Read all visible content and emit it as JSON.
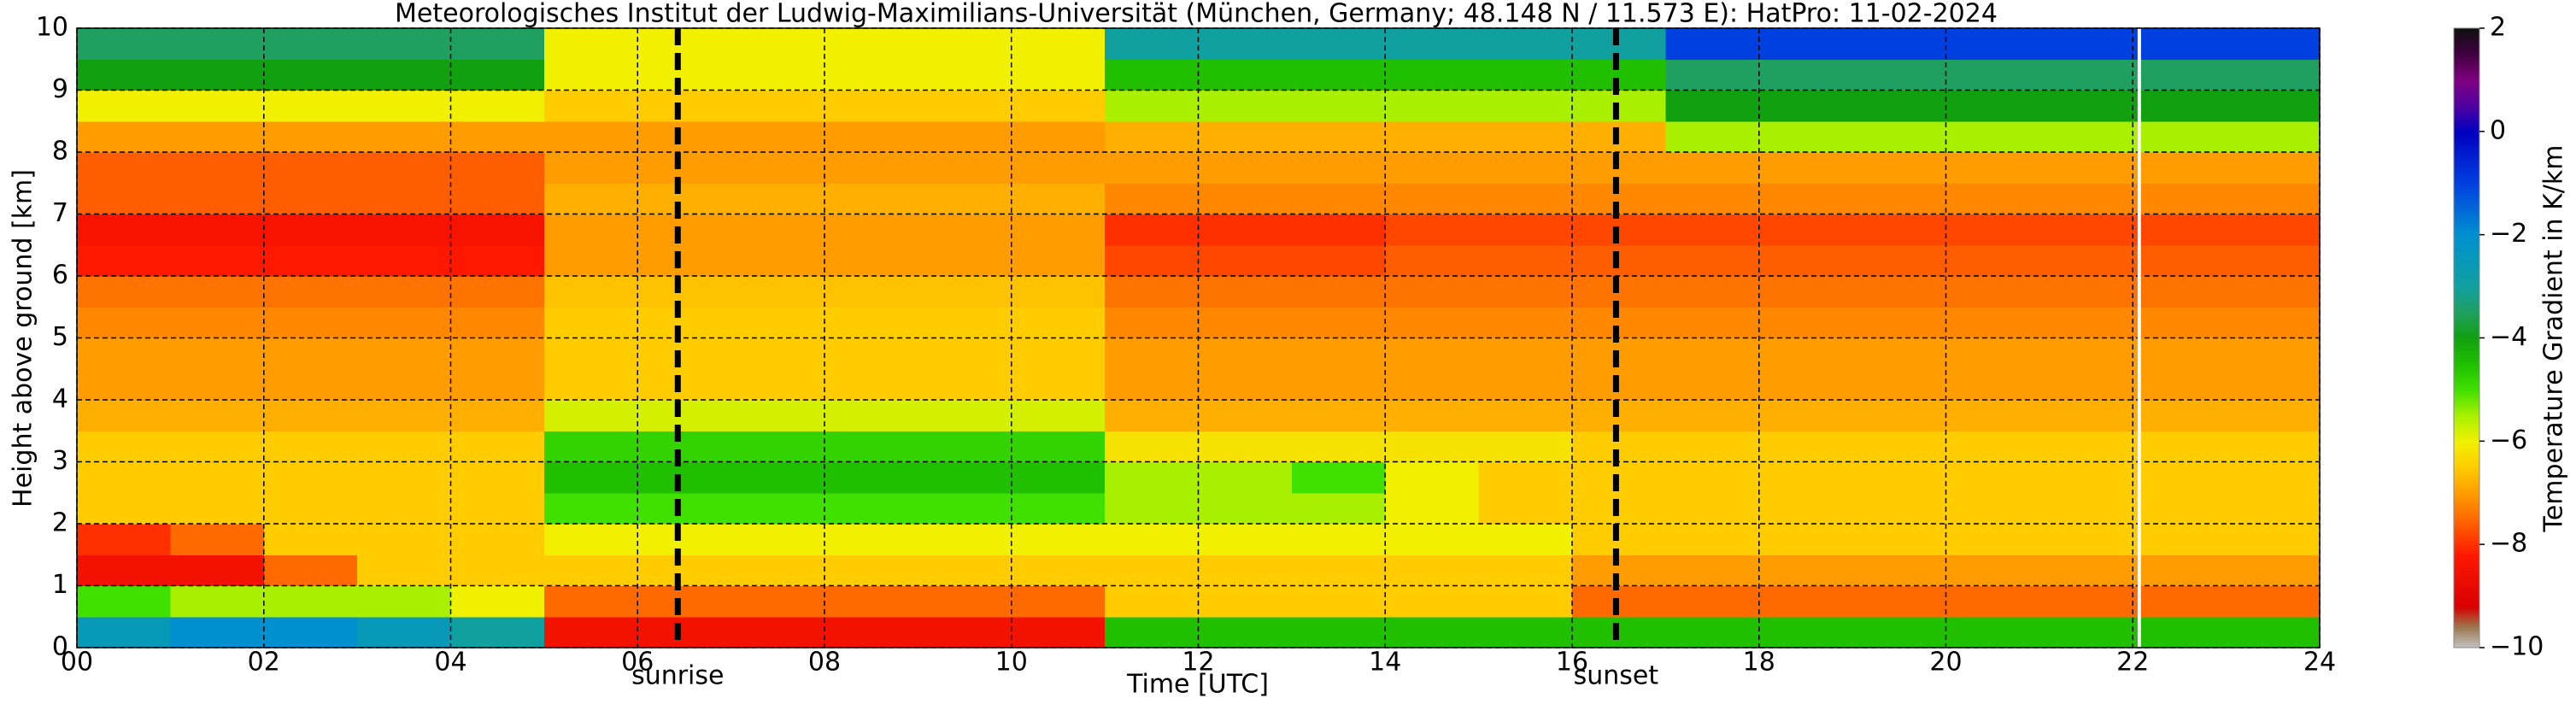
{
  "chart_data": {
    "type": "heatmap",
    "title": "Meteorologisches Institut der Ludwig-Maximilians-Universität (München, Germany; 48.148 N / 11.573 E):    HatPro: 11-02-2024",
    "xlabel": "Time [UTC]",
    "ylabel": "Height above ground [km]",
    "colorbar_label": "Temperature Gradient in K/km",
    "xlim": [
      0,
      24
    ],
    "ylim": [
      0,
      10
    ],
    "xticks": [
      {
        "value": 0,
        "label": "00"
      },
      {
        "value": 2,
        "label": "02"
      },
      {
        "value": 4,
        "label": "04"
      },
      {
        "value": 6,
        "label": "06"
      },
      {
        "value": 8,
        "label": "08"
      },
      {
        "value": 10,
        "label": "10"
      },
      {
        "value": 12,
        "label": "12"
      },
      {
        "value": 14,
        "label": "14"
      },
      {
        "value": 16,
        "label": "16"
      },
      {
        "value": 18,
        "label": "18"
      },
      {
        "value": 20,
        "label": "20"
      },
      {
        "value": 22,
        "label": "22"
      },
      {
        "value": 24,
        "label": "24"
      }
    ],
    "yticks": [
      0,
      1,
      2,
      3,
      4,
      5,
      6,
      7,
      8,
      9,
      10
    ],
    "grid": true,
    "zlim": [
      -10,
      2
    ],
    "zticks": [
      {
        "value": -10,
        "label": "−10"
      },
      {
        "value": -8,
        "label": "−8"
      },
      {
        "value": -6,
        "label": "−6"
      },
      {
        "value": -4,
        "label": "−4"
      },
      {
        "value": -2,
        "label": "−2"
      },
      {
        "value": 0,
        "label": "0"
      },
      {
        "value": 2,
        "label": "2"
      }
    ],
    "colorscale": [
      [
        -10,
        "#c4c4c4"
      ],
      [
        -9.6,
        "#9c7850"
      ],
      [
        -9.2,
        "#d80000"
      ],
      [
        -8.2,
        "#ff1800"
      ],
      [
        -7.5,
        "#ff6a00"
      ],
      [
        -7,
        "#ff9c00"
      ],
      [
        -6.5,
        "#ffcc00"
      ],
      [
        -6,
        "#f0f000"
      ],
      [
        -5.5,
        "#a8f000"
      ],
      [
        -5,
        "#40e000"
      ],
      [
        -4.5,
        "#20c000"
      ],
      [
        -4,
        "#10a010"
      ],
      [
        -3.5,
        "#20a060"
      ],
      [
        -3,
        "#10a0a0"
      ],
      [
        -2,
        "#0090d0"
      ],
      [
        -1,
        "#0040e0"
      ],
      [
        0,
        "#0000c0"
      ],
      [
        0.5,
        "#5000a0"
      ],
      [
        1,
        "#800080"
      ],
      [
        1.5,
        "#400040"
      ],
      [
        2,
        "#101010"
      ]
    ],
    "xbins": [
      0,
      1,
      2,
      3,
      4,
      5,
      6,
      7,
      8,
      9,
      10,
      11,
      12,
      13,
      14,
      15,
      16,
      17,
      18,
      19,
      20,
      21,
      22,
      23,
      24
    ],
    "ybins": [
      0,
      0.5,
      1,
      1.5,
      2,
      2.5,
      3,
      3.5,
      4,
      4.5,
      5,
      5.5,
      6,
      6.5,
      7,
      7.5,
      8,
      8.5,
      9,
      9.5,
      10
    ],
    "z": [
      [
        -2.5,
        -2,
        -2,
        -2.5,
        -3,
        -8.5,
        -8.5,
        -8.5,
        -8.5,
        -8.5,
        -8.5,
        -4.5,
        -4.5,
        -4.5,
        -4.5,
        -4.5,
        -4.5,
        -4.5,
        -4.5,
        -4.5,
        -4.5,
        -4.5,
        -4.5,
        -4.5
      ],
      [
        -5,
        -5.5,
        -5.5,
        -5.5,
        -6,
        -7.5,
        -7.5,
        -7.5,
        -7.5,
        -7.5,
        -7.5,
        -6.5,
        -6.5,
        -6.5,
        -6.5,
        -6.5,
        -7.5,
        -7.5,
        -7.5,
        -7.5,
        -7.5,
        -7.5,
        -7.5,
        -7.5
      ],
      [
        -8.5,
        -8.5,
        -7.5,
        -6.5,
        -6.5,
        -6.5,
        -6.5,
        -6.5,
        -6.5,
        -6.5,
        -6.5,
        -6.5,
        -6.5,
        -6.5,
        -6.5,
        -6.5,
        -7,
        -7,
        -7,
        -7,
        -7,
        -7,
        -7,
        -7
      ],
      [
        -8,
        -7.5,
        -6.5,
        -6.5,
        -6.5,
        -6,
        -6,
        -6,
        -6,
        -6,
        -6,
        -6,
        -6,
        -6,
        -6,
        -6,
        -6.5,
        -6.5,
        -6.5,
        -6.5,
        -6.5,
        -6.5,
        -6.5,
        -6.5
      ],
      [
        -6.5,
        -6.5,
        -6.5,
        -6.5,
        -6.5,
        -5,
        -5,
        -5,
        -5,
        -5,
        -5,
        -5.5,
        -5.5,
        -5.5,
        -6,
        -6.5,
        -6.5,
        -6.5,
        -6.5,
        -6.5,
        -6.5,
        -6.5,
        -6.5,
        -6.5
      ],
      [
        -6.5,
        -6.5,
        -6.5,
        -6.5,
        -6.5,
        -4.5,
        -4.5,
        -4.5,
        -4.5,
        -4.5,
        -4.5,
        -5.5,
        -5.5,
        -5,
        -6,
        -6.5,
        -6.5,
        -6.5,
        -6.5,
        -6.5,
        -6.5,
        -6.5,
        -6.5,
        -6.5
      ],
      [
        -6.5,
        -6.5,
        -6.5,
        -6.5,
        -6.5,
        -4.8,
        -4.8,
        -4.8,
        -4.8,
        -4.8,
        -4.8,
        -6.2,
        -6.2,
        -6.2,
        -6.2,
        -6.2,
        -6.5,
        -6.5,
        -6.5,
        -6.5,
        -6.5,
        -6.5,
        -6.5,
        -6.5
      ],
      [
        -6.8,
        -6.8,
        -6.8,
        -6.8,
        -6.8,
        -5.8,
        -5.8,
        -5.8,
        -5.8,
        -5.8,
        -5.8,
        -6.8,
        -6.8,
        -6.8,
        -6.8,
        -6.8,
        -6.8,
        -6.8,
        -6.8,
        -6.8,
        -6.8,
        -6.8,
        -6.8,
        -6.8
      ],
      [
        -7,
        -7,
        -7,
        -7,
        -7,
        -6.5,
        -6.5,
        -6.5,
        -6.5,
        -6.5,
        -6.5,
        -7,
        -7,
        -7,
        -7,
        -7,
        -7,
        -7,
        -7,
        -7,
        -7,
        -7,
        -7,
        -7
      ],
      [
        -7,
        -7,
        -7,
        -7,
        -7,
        -6.5,
        -6.5,
        -6.5,
        -6.5,
        -6.5,
        -6.5,
        -7,
        -7,
        -7,
        -7,
        -7,
        -7,
        -7,
        -7,
        -7,
        -7,
        -7,
        -7,
        -7
      ],
      [
        -7.2,
        -7.2,
        -7.2,
        -7.2,
        -7.2,
        -6.5,
        -6.5,
        -6.5,
        -6.5,
        -6.5,
        -6.5,
        -7.2,
        -7.2,
        -7.2,
        -7.2,
        -7.2,
        -7.2,
        -7.2,
        -7.2,
        -7.2,
        -7.2,
        -7.2,
        -7.2,
        -7.2
      ],
      [
        -7.4,
        -7.4,
        -7.4,
        -7.4,
        -7.4,
        -6.6,
        -6.6,
        -6.6,
        -6.6,
        -6.6,
        -6.6,
        -7.4,
        -7.4,
        -7.4,
        -7.4,
        -7.4,
        -7.4,
        -7.4,
        -7.4,
        -7.4,
        -7.4,
        -7.4,
        -7.4,
        -7.4
      ],
      [
        -8.2,
        -8.2,
        -8.2,
        -8.2,
        -8.2,
        -7,
        -7,
        -7,
        -7,
        -7,
        -7,
        -7.8,
        -7.8,
        -7.8,
        -7.6,
        -7.6,
        -7.6,
        -7.6,
        -7.6,
        -7.6,
        -7.6,
        -7.6,
        -7.6,
        -7.6
      ],
      [
        -8.4,
        -8.4,
        -8.4,
        -8.4,
        -8.4,
        -7,
        -7,
        -7,
        -7,
        -7,
        -7,
        -8,
        -8,
        -8,
        -7.8,
        -7.8,
        -7.8,
        -7.8,
        -7.8,
        -7.8,
        -7.8,
        -7.8,
        -7.8,
        -7.8
      ],
      [
        -7.6,
        -7.6,
        -7.6,
        -7.6,
        -7.6,
        -6.8,
        -6.8,
        -6.8,
        -6.8,
        -6.8,
        -6.8,
        -7.2,
        -7.2,
        -7.2,
        -7.2,
        -7.2,
        -7.2,
        -7.2,
        -7.2,
        -7.2,
        -7.2,
        -7.2,
        -7.2,
        -7.2
      ],
      [
        -7.6,
        -7.6,
        -7.6,
        -7.6,
        -7.6,
        -7,
        -7,
        -7,
        -7,
        -7,
        -7,
        -7,
        -7,
        -7,
        -7,
        -7,
        -7,
        -7,
        -7,
        -7,
        -7,
        -7,
        -7,
        -7
      ],
      [
        -7,
        -7,
        -7,
        -7,
        -7,
        -7,
        -7,
        -7,
        -7,
        -7,
        -7,
        -6.8,
        -6.8,
        -6.8,
        -6.8,
        -6.8,
        -6.8,
        -5.5,
        -5.5,
        -5.5,
        -5.5,
        -5.5,
        -5.5,
        -5.5
      ],
      [
        -6,
        -6,
        -6,
        -6,
        -6,
        -6.5,
        -6.5,
        -6.5,
        -6.5,
        -6.5,
        -6.5,
        -5.5,
        -5.5,
        -5.5,
        -5.5,
        -5.5,
        -5.5,
        -4,
        -4,
        -4,
        -4,
        -4,
        -4,
        -4
      ],
      [
        -4,
        -4,
        -4,
        -4,
        -4,
        -6,
        -6,
        -6,
        -6,
        -6,
        -6,
        -4.5,
        -4.5,
        -4.5,
        -4.5,
        -4.5,
        -4.5,
        -3.5,
        -3.5,
        -3.5,
        -3.5,
        -3.5,
        -3.5,
        -3.5
      ],
      [
        -3.5,
        -3.5,
        -3.5,
        -3.5,
        -3.5,
        -6,
        -6,
        -6,
        -6,
        -6,
        -6,
        -3,
        -3,
        -3,
        -3,
        -3,
        -3,
        -1,
        -1,
        -1,
        -1,
        -1,
        -1,
        -1
      ]
    ],
    "vlines": [
      {
        "x": 6.43,
        "label": "sunrise",
        "color": "#000000",
        "style": "dashed"
      },
      {
        "x": 16.47,
        "label": "sunset",
        "color": "#000000",
        "style": "dashed"
      },
      {
        "x": 22.07,
        "color": "#ffffff",
        "style": "solid"
      }
    ]
  }
}
